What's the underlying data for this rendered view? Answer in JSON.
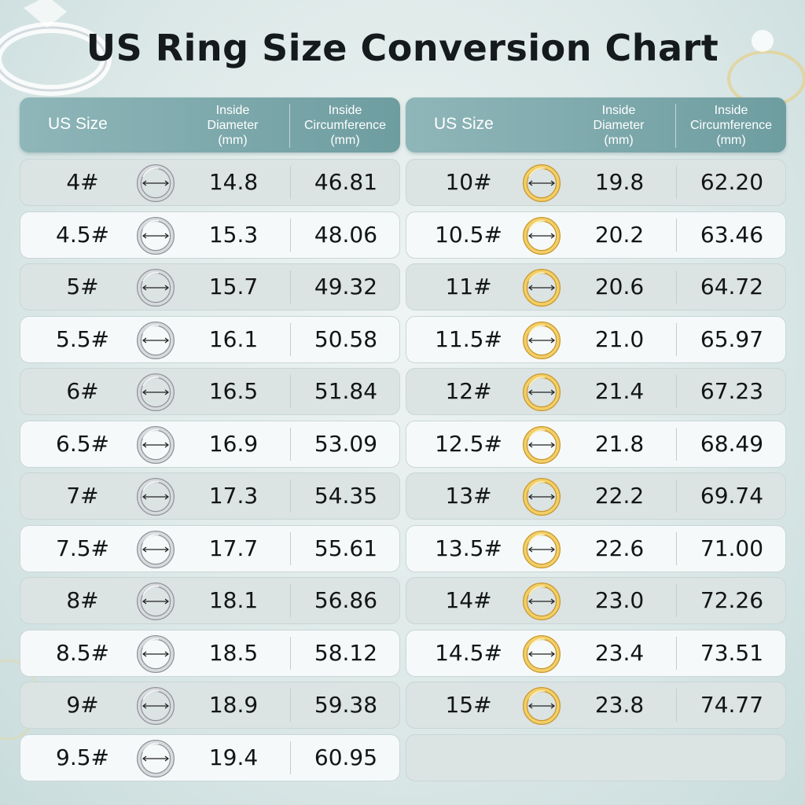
{
  "title": "US Ring Size Conversion Chart",
  "headers": {
    "size": "US Size",
    "diameter": "Inside\nDiameter\n(mm)",
    "circumference": "Inside\nCircumference\n(mm)"
  },
  "colors": {
    "header_start": "#8fb6b9",
    "header_end": "#6e9da0",
    "silver": "#b8bcc0",
    "gold": "#e0b74a"
  },
  "icons": {
    "silver_ring": "silver-ring-icon",
    "gold_ring": "gold-ring-icon",
    "arrow": "double-arrow-icon"
  },
  "chart_data": {
    "type": "table",
    "title": "US Ring Size Conversion Chart",
    "columns": [
      "US Size",
      "Inside Diameter (mm)",
      "Inside Circumference (mm)"
    ],
    "left": [
      {
        "size": "4#",
        "diameter": "14.8",
        "circumference": "46.81"
      },
      {
        "size": "4.5#",
        "diameter": "15.3",
        "circumference": "48.06"
      },
      {
        "size": "5#",
        "diameter": "15.7",
        "circumference": "49.32"
      },
      {
        "size": "5.5#",
        "diameter": "16.1",
        "circumference": "50.58"
      },
      {
        "size": "6#",
        "diameter": "16.5",
        "circumference": "51.84"
      },
      {
        "size": "6.5#",
        "diameter": "16.9",
        "circumference": "53.09"
      },
      {
        "size": "7#",
        "diameter": "17.3",
        "circumference": "54.35"
      },
      {
        "size": "7.5#",
        "diameter": "17.7",
        "circumference": "55.61"
      },
      {
        "size": "8#",
        "diameter": "18.1",
        "circumference": "56.86"
      },
      {
        "size": "8.5#",
        "diameter": "18.5",
        "circumference": "58.12"
      },
      {
        "size": "9#",
        "diameter": "18.9",
        "circumference": "59.38"
      },
      {
        "size": "9.5#",
        "diameter": "19.4",
        "circumference": "60.95"
      }
    ],
    "right": [
      {
        "size": "10#",
        "diameter": "19.8",
        "circumference": "62.20"
      },
      {
        "size": "10.5#",
        "diameter": "20.2",
        "circumference": "63.46"
      },
      {
        "size": "11#",
        "diameter": "20.6",
        "circumference": "64.72"
      },
      {
        "size": "11.5#",
        "diameter": "21.0",
        "circumference": "65.97"
      },
      {
        "size": "12#",
        "diameter": "21.4",
        "circumference": "67.23"
      },
      {
        "size": "12.5#",
        "diameter": "21.8",
        "circumference": "68.49"
      },
      {
        "size": "13#",
        "diameter": "22.2",
        "circumference": "69.74"
      },
      {
        "size": "13.5#",
        "diameter": "22.6",
        "circumference": "71.00"
      },
      {
        "size": "14#",
        "diameter": "23.0",
        "circumference": "72.26"
      },
      {
        "size": "14.5#",
        "diameter": "23.4",
        "circumference": "73.51"
      },
      {
        "size": "15#",
        "diameter": "23.8",
        "circumference": "74.77"
      }
    ]
  }
}
